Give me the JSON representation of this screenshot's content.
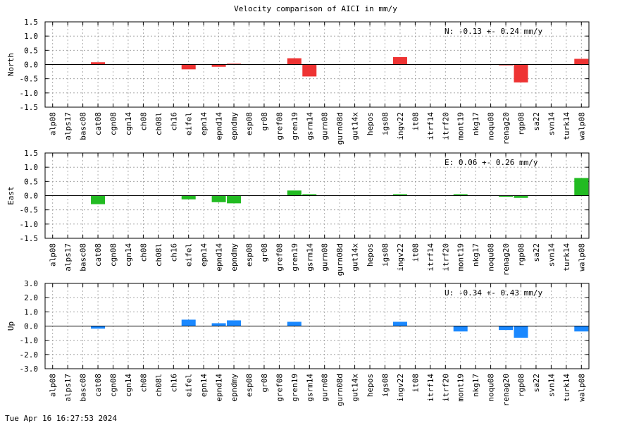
{
  "title": "Velocity comparison of AICI in mm/y",
  "timestamp": "Tue Apr 16 16:27:53 2024",
  "chart_data": {
    "type": "bar",
    "title": "Velocity comparison of AICI in mm/y",
    "categories": [
      "alp08",
      "alps17",
      "basc08",
      "cat08",
      "cgn08",
      "cgn14",
      "ch08",
      "ch08l",
      "ch16",
      "eifel",
      "epn14",
      "epnd14",
      "epndmy",
      "esp08",
      "gr08",
      "gref08",
      "gren19",
      "gsrm14",
      "gurn08",
      "gurn08d",
      "gut14x",
      "hepos",
      "igs08",
      "ingv22",
      "it08",
      "itrf14",
      "itrf20",
      "mont19",
      "nkg17",
      "noqu08",
      "renag20",
      "rgp08",
      "sa22",
      "svn14",
      "turk14",
      "walp08"
    ],
    "grid": true,
    "panels": [
      {
        "ylabel": "North",
        "color": "#ee3333",
        "stat": "N:  -0.13 +-  0.24 mm/y",
        "ylim": [
          -1.5,
          1.5
        ],
        "yticks": [
          "1.5",
          "1.0",
          "0.5",
          "0.0",
          "-0.5",
          "-1.0",
          "-1.5"
        ],
        "values": [
          null,
          null,
          null,
          0.08,
          null,
          null,
          null,
          null,
          null,
          -0.17,
          null,
          -0.08,
          0.03,
          null,
          null,
          null,
          0.22,
          -0.42,
          null,
          null,
          null,
          null,
          null,
          0.26,
          null,
          null,
          null,
          null,
          null,
          null,
          -0.03,
          -0.63,
          null,
          null,
          null,
          0.2
        ]
      },
      {
        "ylabel": "East",
        "color": "#22bb22",
        "stat": "E:   0.06 +-  0.26 mm/y",
        "ylim": [
          -1.5,
          1.5
        ],
        "yticks": [
          "1.5",
          "1.0",
          "0.5",
          "0.0",
          "-0.5",
          "-1.0",
          "-1.5"
        ],
        "values": [
          null,
          null,
          null,
          -0.3,
          null,
          null,
          null,
          null,
          null,
          -0.13,
          null,
          -0.23,
          -0.27,
          null,
          null,
          null,
          0.18,
          0.05,
          null,
          null,
          null,
          null,
          null,
          0.05,
          null,
          null,
          null,
          0.05,
          null,
          null,
          -0.04,
          -0.08,
          null,
          null,
          null,
          0.62
        ]
      },
      {
        "ylabel": "Up",
        "color": "#1a88ff",
        "stat": "U:  -0.34 +-  0.43 mm/y",
        "ylim": [
          -3.0,
          3.0
        ],
        "yticks": [
          "3.0",
          "2.0",
          "1.0",
          "0.0",
          "-1.0",
          "-2.0",
          "-3.0"
        ],
        "values": [
          null,
          null,
          null,
          -0.18,
          null,
          null,
          null,
          null,
          null,
          0.45,
          null,
          0.2,
          0.4,
          null,
          null,
          null,
          0.3,
          null,
          null,
          null,
          null,
          null,
          null,
          0.3,
          null,
          null,
          null,
          -0.38,
          null,
          null,
          -0.28,
          -0.82,
          null,
          null,
          null,
          -0.38
        ]
      }
    ]
  }
}
